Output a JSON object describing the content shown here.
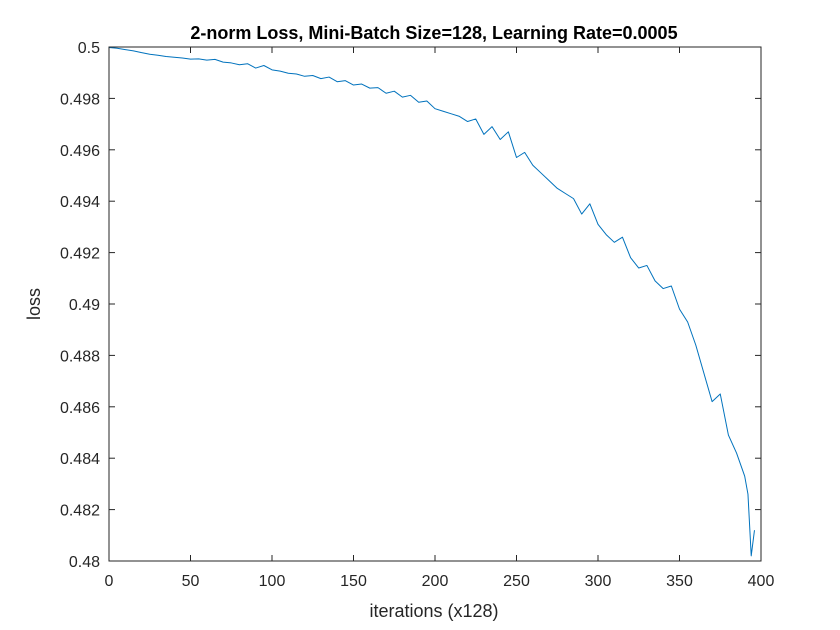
{
  "chart_data": {
    "type": "line",
    "title": "2-norm Loss, Mini-Batch Size=128, Learning Rate=0.0005",
    "xlabel": "iterations (x128)",
    "ylabel": "loss",
    "xlim": [
      0,
      400
    ],
    "ylim": [
      0.48,
      0.5
    ],
    "xticks": [
      0,
      50,
      100,
      150,
      200,
      250,
      300,
      350,
      400
    ],
    "xtick_labels": [
      "0",
      "50",
      "100",
      "150",
      "200",
      "250",
      "300",
      "350",
      "400"
    ],
    "yticks": [
      0.48,
      0.482,
      0.484,
      0.486,
      0.488,
      0.49,
      0.492,
      0.494,
      0.496,
      0.498,
      0.5
    ],
    "ytick_labels": [
      "0.48",
      "0.482",
      "0.484",
      "0.486",
      "0.488",
      "0.49",
      "0.492",
      "0.494",
      "0.496",
      "0.498",
      "0.5"
    ],
    "grid": false,
    "line_color": "#0072BD",
    "series": [
      {
        "x": [
          0,
          5,
          10,
          15,
          20,
          25,
          30,
          35,
          40,
          45,
          50,
          55,
          60,
          65,
          70,
          75,
          80,
          85,
          90,
          95,
          100,
          105,
          110,
          115,
          120,
          125,
          130,
          135,
          140,
          145,
          150,
          155,
          160,
          165,
          170,
          175,
          180,
          185,
          190,
          195,
          200,
          205,
          210,
          215,
          220,
          225,
          230,
          235,
          240,
          245,
          250,
          255,
          260,
          265,
          270,
          275,
          280,
          285,
          290,
          295,
          300,
          305,
          310,
          315,
          320,
          325,
          330,
          335,
          340,
          345,
          350,
          355,
          360,
          365,
          370,
          375,
          380,
          385,
          390,
          392,
          394,
          396
        ],
        "y": [
          0.49998,
          0.49995,
          0.4999,
          0.49985,
          0.49978,
          0.49972,
          0.49968,
          0.49963,
          0.4996,
          0.49957,
          0.49953,
          0.49954,
          0.49949,
          0.49952,
          0.49941,
          0.49938,
          0.49931,
          0.49935,
          0.49918,
          0.49928,
          0.49911,
          0.49906,
          0.49898,
          0.49895,
          0.49886,
          0.49889,
          0.49877,
          0.49883,
          0.49865,
          0.49869,
          0.49852,
          0.49856,
          0.4984,
          0.49842,
          0.4982,
          0.49828,
          0.49805,
          0.49812,
          0.49785,
          0.4979,
          0.4976,
          0.4975,
          0.4974,
          0.4973,
          0.4971,
          0.4972,
          0.4966,
          0.4969,
          0.4964,
          0.4967,
          0.4957,
          0.4959,
          0.4954,
          0.4951,
          0.4948,
          0.4945,
          0.4943,
          0.4941,
          0.4935,
          0.4939,
          0.4931,
          0.4927,
          0.4924,
          0.4926,
          0.4918,
          0.4914,
          0.4915,
          0.4909,
          0.4906,
          0.4907,
          0.4898,
          0.4893,
          0.4884,
          0.4873,
          0.4862,
          0.4865,
          0.4849,
          0.4842,
          0.4833,
          0.4826,
          0.4802,
          0.4812
        ]
      }
    ]
  }
}
